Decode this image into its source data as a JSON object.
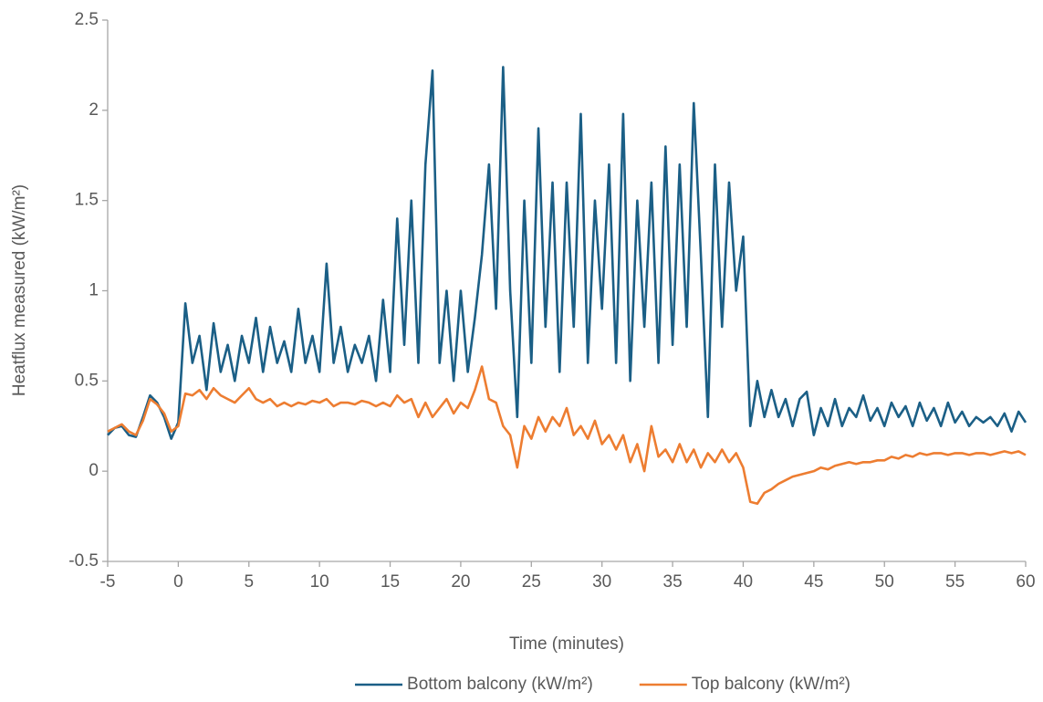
{
  "chart_data": {
    "type": "line",
    "x_label": "Time (minutes)",
    "y_label": "Heatflux measured (kW/m²)",
    "x": [
      -5,
      -4.5,
      -4,
      -3.5,
      -3,
      -2.5,
      -2,
      -1.5,
      -1,
      -0.5,
      0,
      0.5,
      1,
      1.5,
      2,
      2.5,
      3,
      3.5,
      4,
      4.5,
      5,
      5.5,
      6,
      6.5,
      7,
      7.5,
      8,
      8.5,
      9,
      9.5,
      10,
      10.5,
      11,
      11.5,
      12,
      12.5,
      13,
      13.5,
      14,
      14.5,
      15,
      15.5,
      16,
      16.5,
      17,
      17.5,
      18,
      18.5,
      19,
      19.5,
      20,
      20.5,
      21,
      21.5,
      22,
      22.5,
      23,
      23.5,
      24,
      24.5,
      25,
      25.5,
      26,
      26.5,
      27,
      27.5,
      28,
      28.5,
      29,
      29.5,
      30,
      30.5,
      31,
      31.5,
      32,
      32.5,
      33,
      33.5,
      34,
      34.5,
      35,
      35.5,
      36,
      36.5,
      37,
      37.5,
      38,
      38.5,
      39,
      39.5,
      40,
      40.5,
      41,
      41.5,
      42,
      42.5,
      43,
      43.5,
      44,
      44.5,
      45,
      45.5,
      46,
      46.5,
      47,
      47.5,
      48,
      48.5,
      49,
      49.5,
      50,
      50.5,
      51,
      51.5,
      52,
      52.5,
      53,
      53.5,
      54,
      54.5,
      55,
      55.5,
      56,
      56.5,
      57,
      57.5,
      58,
      58.5,
      59,
      59.5,
      60
    ],
    "series": [
      {
        "name": "Bottom balcony (kW/m²)",
        "color": "#1b5f86",
        "values": [
          0.2,
          0.24,
          0.25,
          0.2,
          0.19,
          0.3,
          0.42,
          0.38,
          0.3,
          0.18,
          0.27,
          0.93,
          0.6,
          0.75,
          0.45,
          0.82,
          0.55,
          0.7,
          0.5,
          0.75,
          0.6,
          0.85,
          0.55,
          0.8,
          0.6,
          0.72,
          0.55,
          0.9,
          0.6,
          0.75,
          0.55,
          1.15,
          0.6,
          0.8,
          0.55,
          0.7,
          0.6,
          0.75,
          0.5,
          0.95,
          0.55,
          1.4,
          0.7,
          1.5,
          0.6,
          1.7,
          2.22,
          0.6,
          1.0,
          0.5,
          1.0,
          0.55,
          0.85,
          1.2,
          1.7,
          0.9,
          2.24,
          1.0,
          0.3,
          1.5,
          0.6,
          1.9,
          0.8,
          1.6,
          0.55,
          1.6,
          0.8,
          1.98,
          0.6,
          1.5,
          0.9,
          1.7,
          0.6,
          1.98,
          0.5,
          1.5,
          0.8,
          1.6,
          0.6,
          1.8,
          0.7,
          1.7,
          0.8,
          2.04,
          1.2,
          0.3,
          1.7,
          0.8,
          1.6,
          1.0,
          1.3,
          0.25,
          0.5,
          0.3,
          0.45,
          0.3,
          0.4,
          0.25,
          0.4,
          0.44,
          0.2,
          0.35,
          0.25,
          0.4,
          0.25,
          0.35,
          0.3,
          0.42,
          0.28,
          0.35,
          0.25,
          0.38,
          0.3,
          0.36,
          0.25,
          0.38,
          0.28,
          0.35,
          0.25,
          0.38,
          0.27,
          0.33,
          0.25,
          0.3,
          0.27,
          0.3,
          0.25,
          0.32,
          0.22,
          0.33,
          0.27
        ]
      },
      {
        "name": "Top balcony (kW/m²)",
        "color": "#ed7d31",
        "values": [
          0.22,
          0.24,
          0.26,
          0.22,
          0.2,
          0.28,
          0.4,
          0.37,
          0.32,
          0.22,
          0.25,
          0.43,
          0.42,
          0.45,
          0.4,
          0.46,
          0.42,
          0.4,
          0.38,
          0.42,
          0.46,
          0.4,
          0.38,
          0.4,
          0.36,
          0.38,
          0.36,
          0.38,
          0.37,
          0.39,
          0.38,
          0.4,
          0.36,
          0.38,
          0.38,
          0.37,
          0.39,
          0.38,
          0.36,
          0.38,
          0.36,
          0.42,
          0.38,
          0.4,
          0.3,
          0.38,
          0.3,
          0.35,
          0.4,
          0.32,
          0.38,
          0.35,
          0.45,
          0.58,
          0.4,
          0.38,
          0.25,
          0.2,
          0.02,
          0.25,
          0.18,
          0.3,
          0.22,
          0.3,
          0.25,
          0.35,
          0.2,
          0.25,
          0.18,
          0.28,
          0.15,
          0.2,
          0.12,
          0.2,
          0.05,
          0.15,
          0.0,
          0.25,
          0.08,
          0.12,
          0.05,
          0.15,
          0.05,
          0.12,
          0.02,
          0.1,
          0.05,
          0.12,
          0.05,
          0.1,
          0.02,
          -0.17,
          -0.18,
          -0.12,
          -0.1,
          -0.07,
          -0.05,
          -0.03,
          -0.02,
          -0.01,
          0.0,
          0.02,
          0.01,
          0.03,
          0.04,
          0.05,
          0.04,
          0.05,
          0.05,
          0.06,
          0.06,
          0.08,
          0.07,
          0.09,
          0.08,
          0.1,
          0.09,
          0.1,
          0.1,
          0.09,
          0.1,
          0.1,
          0.09,
          0.1,
          0.1,
          0.09,
          0.1,
          0.11,
          0.1,
          0.11,
          0.09
        ]
      }
    ],
    "xlim": [
      -5,
      60
    ],
    "xticks": [
      -5,
      0,
      5,
      10,
      15,
      20,
      25,
      30,
      35,
      40,
      45,
      50,
      55,
      60
    ],
    "ylim": [
      -0.5,
      2.5
    ],
    "yticks": [
      -0.5,
      0,
      0.5,
      1,
      1.5,
      2,
      2.5
    ],
    "grid": false,
    "legend": "bottom"
  }
}
